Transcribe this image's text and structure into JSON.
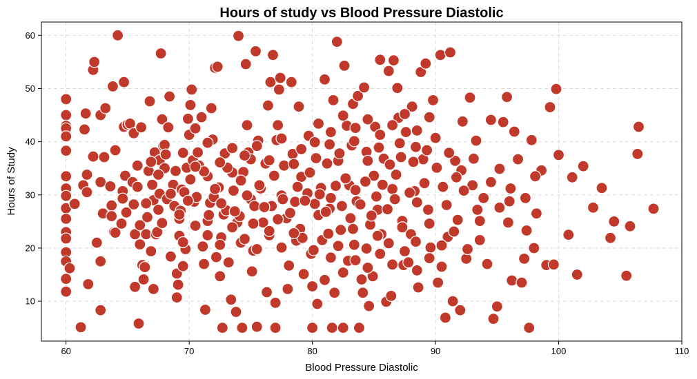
{
  "chart_data": {
    "type": "scatter",
    "title": "Hours of study vs Blood Pressure Diastolic",
    "xlabel": "Blood Pressure Diastolic",
    "ylabel": "Hours of Study",
    "xlim": [
      58,
      110
    ],
    "ylim": [
      2.5,
      62.5
    ],
    "xticks": [
      60,
      70,
      80,
      90,
      100,
      110
    ],
    "yticks": [
      10,
      20,
      30,
      40,
      50,
      60
    ],
    "grid": true,
    "marker_color": "#c0392b",
    "marker_edge_color": "#ffffff",
    "points": [
      [
        60,
        48
      ],
      [
        60,
        45
      ],
      [
        60,
        43
      ],
      [
        60,
        42.5
      ],
      [
        60,
        41
      ],
      [
        60,
        38.3
      ],
      [
        60,
        33.5
      ],
      [
        60,
        31.2
      ],
      [
        60,
        29.8
      ],
      [
        60,
        27.5
      ],
      [
        60,
        25.5
      ],
      [
        60,
        23
      ],
      [
        60,
        21.8
      ],
      [
        60,
        19.2
      ],
      [
        60,
        17.5
      ],
      [
        60,
        14.2
      ],
      [
        60,
        11.8
      ],
      [
        60.3,
        16.2
      ],
      [
        60.7,
        28.3
      ],
      [
        61.2,
        5.1
      ],
      [
        61.4,
        31.8
      ],
      [
        61.5,
        42.3
      ],
      [
        61.6,
        45.3
      ],
      [
        61.7,
        30.5
      ],
      [
        61.7,
        33.8
      ],
      [
        61.8,
        13.2
      ],
      [
        62.2,
        37.2
      ],
      [
        62.2,
        53.5
      ],
      [
        62.3,
        55
      ],
      [
        62.5,
        21
      ],
      [
        62.8,
        17.5
      ],
      [
        62.8,
        8.3
      ],
      [
        62.8,
        45
      ],
      [
        62.8,
        32.4
      ],
      [
        63,
        26.5
      ],
      [
        63.1,
        37.1
      ],
      [
        63.2,
        46.3
      ],
      [
        63.6,
        31.6
      ],
      [
        63.7,
        28
      ],
      [
        63.7,
        26
      ],
      [
        63.8,
        50.4
      ],
      [
        63.9,
        23
      ],
      [
        64,
        38.4
      ],
      [
        64,
        22.9
      ],
      [
        64.2,
        60
      ],
      [
        64.5,
        24.6
      ],
      [
        64.6,
        30.7
      ],
      [
        64.6,
        29.3
      ],
      [
        64.7,
        42.8
      ],
      [
        64.7,
        51.2
      ],
      [
        64.8,
        33.6
      ],
      [
        65,
        43.2
      ],
      [
        65.2,
        43.4
      ],
      [
        65.4,
        32.4
      ],
      [
        65.5,
        41.6
      ],
      [
        65.5,
        28.2
      ],
      [
        65.6,
        22.6
      ],
      [
        65.6,
        12.7
      ],
      [
        65.8,
        35.5
      ],
      [
        65.9,
        5.8
      ],
      [
        66,
        24.3
      ],
      [
        66,
        20.7
      ],
      [
        66.1,
        42.7
      ],
      [
        66.2,
        16.8
      ],
      [
        66.3,
        14.1
      ],
      [
        66.4,
        16.4
      ],
      [
        66.5,
        22.6
      ],
      [
        66.6,
        25.8
      ],
      [
        66.7,
        34.5
      ],
      [
        66.8,
        47.6
      ],
      [
        66.9,
        19.4
      ],
      [
        67,
        31.9
      ],
      [
        67.1,
        29
      ],
      [
        67.1,
        12.3
      ],
      [
        67.2,
        38
      ],
      [
        67.3,
        22.6
      ],
      [
        67.4,
        23
      ],
      [
        67.5,
        27.2
      ],
      [
        67.6,
        36.5
      ],
      [
        67.6,
        30.2
      ],
      [
        67.7,
        56.6
      ],
      [
        67.8,
        44.2
      ],
      [
        67.9,
        39.2
      ],
      [
        68,
        39.4
      ],
      [
        68,
        35
      ],
      [
        68.2,
        29.2
      ],
      [
        68.3,
        42.7
      ],
      [
        68.4,
        48.5
      ],
      [
        68.5,
        18.4
      ],
      [
        68.7,
        31.9
      ],
      [
        68.8,
        27.9
      ],
      [
        68.9,
        34.5
      ],
      [
        69,
        15.2
      ],
      [
        69,
        10.7
      ],
      [
        69.1,
        13.1
      ],
      [
        69.2,
        22.3
      ],
      [
        69.2,
        25.5
      ],
      [
        69.3,
        27
      ],
      [
        69.4,
        31
      ],
      [
        69.5,
        16.6
      ],
      [
        69.6,
        30.5
      ],
      [
        69.7,
        19.8
      ],
      [
        69.8,
        35.1
      ],
      [
        69.9,
        44.3
      ],
      [
        70,
        41.3
      ],
      [
        70.1,
        46.9
      ],
      [
        70.2,
        49.8
      ],
      [
        70.3,
        36.5
      ],
      [
        70.4,
        28.7
      ],
      [
        70.5,
        42.5
      ],
      [
        70.7,
        38
      ],
      [
        70.8,
        35.5
      ],
      [
        71,
        44.6
      ],
      [
        71.1,
        20.3
      ],
      [
        71.2,
        17
      ],
      [
        71.3,
        8.4
      ],
      [
        71.5,
        25.1
      ],
      [
        71.5,
        33.5
      ],
      [
        71.7,
        28.5
      ],
      [
        71.8,
        46.3
      ],
      [
        71.9,
        40.4
      ],
      [
        72,
        29.6
      ],
      [
        72.1,
        53.9
      ],
      [
        72.2,
        18.3
      ],
      [
        72.3,
        54.1
      ],
      [
        72.4,
        31.4
      ],
      [
        72.5,
        14.7
      ],
      [
        72.6,
        22
      ],
      [
        72.7,
        5
      ],
      [
        72.8,
        26.3
      ],
      [
        72.9,
        37.8
      ],
      [
        73,
        27.1
      ],
      [
        73.2,
        17.3
      ],
      [
        73.4,
        10.3
      ],
      [
        73.5,
        34.2
      ],
      [
        73.6,
        30.8
      ],
      [
        73.8,
        8
      ],
      [
        73.9,
        24.8
      ],
      [
        74,
        59.9
      ],
      [
        74.1,
        26
      ],
      [
        74.2,
        21
      ],
      [
        74.3,
        5
      ],
      [
        74.4,
        34.3
      ],
      [
        74.6,
        54.6
      ],
      [
        74.7,
        43.1
      ],
      [
        74.8,
        38
      ],
      [
        75,
        36.7
      ],
      [
        75,
        29.2
      ],
      [
        75.1,
        15.6
      ],
      [
        75.2,
        19.5
      ],
      [
        75.3,
        27.9
      ],
      [
        75.4,
        57
      ],
      [
        75.5,
        5.2
      ],
      [
        75.6,
        40.2
      ],
      [
        75.8,
        31.2
      ],
      [
        76,
        24.8
      ],
      [
        76.2,
        35.9
      ],
      [
        76.3,
        11.7
      ],
      [
        76.4,
        46.8
      ],
      [
        76.5,
        22.4
      ],
      [
        76.6,
        51.2
      ],
      [
        76.7,
        27.9
      ],
      [
        76.8,
        56.3
      ],
      [
        77,
        9.7
      ],
      [
        77,
        5
      ],
      [
        77.1,
        40.3
      ],
      [
        77.2,
        43.1
      ],
      [
        77.3,
        49.8
      ],
      [
        77.4,
        52
      ],
      [
        77.5,
        29.9
      ],
      [
        77.7,
        35.5
      ],
      [
        77.9,
        25.6
      ],
      [
        78,
        12.3
      ],
      [
        78.1,
        16.7
      ],
      [
        78.3,
        51.2
      ],
      [
        78.4,
        37.7
      ],
      [
        78.6,
        28.7
      ],
      [
        78.7,
        21.4
      ],
      [
        78.9,
        46.6
      ],
      [
        79,
        23.6
      ],
      [
        79.1,
        33.4
      ],
      [
        79.3,
        15.1
      ],
      [
        79.6,
        30.3
      ],
      [
        79.7,
        41.1
      ],
      [
        79.9,
        18.9
      ],
      [
        80,
        12.8
      ],
      [
        80,
        5
      ],
      [
        80.2,
        39.9
      ],
      [
        80.4,
        9.5
      ],
      [
        80.5,
        26.2
      ],
      [
        80.7,
        31.3
      ],
      [
        80.8,
        21.5
      ],
      [
        81,
        51.7
      ],
      [
        81,
        14
      ],
      [
        81.2,
        35.9
      ],
      [
        81.4,
        27.4
      ],
      [
        81.6,
        5
      ],
      [
        81.7,
        47.8
      ],
      [
        81.8,
        11.6
      ],
      [
        82,
        58.8
      ],
      [
        82.1,
        36.4
      ],
      [
        82.3,
        23.4
      ],
      [
        82.5,
        5
      ],
      [
        82.6,
        54.3
      ],
      [
        82.8,
        43
      ],
      [
        82.9,
        17.6
      ],
      [
        83,
        31.8
      ],
      [
        83.2,
        39.3
      ],
      [
        83.3,
        47.1
      ],
      [
        83.4,
        20.6
      ],
      [
        83.6,
        28.8
      ],
      [
        83.7,
        48.6
      ],
      [
        83.8,
        5
      ],
      [
        84,
        14.1
      ],
      [
        84.1,
        11.6
      ],
      [
        84.2,
        50.2
      ],
      [
        84.4,
        38.1
      ],
      [
        84.6,
        9.1
      ],
      [
        84.7,
        24.4
      ],
      [
        84.9,
        14.7
      ],
      [
        85,
        33.6
      ],
      [
        85.1,
        42.8
      ],
      [
        85.3,
        27.2
      ],
      [
        85.5,
        55.4
      ],
      [
        85.6,
        22.6
      ],
      [
        85.8,
        36.8
      ],
      [
        86,
        9.9
      ],
      [
        86.2,
        53.3
      ],
      [
        86.4,
        11
      ],
      [
        86.5,
        31.1
      ],
      [
        86.6,
        55.3
      ],
      [
        86.7,
        29.2
      ],
      [
        86.9,
        50.1
      ],
      [
        87,
        44.5
      ],
      [
        87.2,
        37.1
      ],
      [
        87.4,
        16.8
      ],
      [
        87.6,
        41.8
      ],
      [
        87.8,
        17.3
      ],
      [
        88,
        22.6
      ],
      [
        88.1,
        46.6
      ],
      [
        88.3,
        30.7
      ],
      [
        88.4,
        39
      ],
      [
        88.6,
        12.6
      ],
      [
        88.8,
        53.1
      ],
      [
        89,
        36.7
      ],
      [
        89.2,
        54.7
      ],
      [
        89.4,
        27.2
      ],
      [
        89.6,
        20.1
      ],
      [
        89.8,
        47.8
      ],
      [
        90,
        40.7
      ],
      [
        90.2,
        13.5
      ],
      [
        90.4,
        56.3
      ],
      [
        90.6,
        31.5
      ],
      [
        90.8,
        6.9
      ],
      [
        91,
        22.1
      ],
      [
        91.2,
        56.8
      ],
      [
        91.4,
        10
      ],
      [
        91.6,
        36.4
      ],
      [
        91.8,
        25.3
      ],
      [
        92,
        8.3
      ],
      [
        92.2,
        43.8
      ],
      [
        92.5,
        18
      ],
      [
        92.8,
        48.3
      ],
      [
        93,
        31.8
      ],
      [
        93.3,
        40.2
      ],
      [
        93.6,
        21.5
      ],
      [
        93.9,
        29.4
      ],
      [
        94.2,
        17
      ],
      [
        94.5,
        44.1
      ],
      [
        94.7,
        6.7
      ],
      [
        95,
        9
      ],
      [
        95.2,
        34.9
      ],
      [
        95.5,
        43.7
      ],
      [
        95.8,
        48.4
      ],
      [
        96,
        28.8
      ],
      [
        96.2,
        13.9
      ],
      [
        96.4,
        41.9
      ],
      [
        96.7,
        36.7
      ],
      [
        97,
        13.5
      ],
      [
        97.2,
        18
      ],
      [
        97.4,
        23.3
      ],
      [
        97.6,
        5
      ],
      [
        97.8,
        40.3
      ],
      [
        98,
        20
      ],
      [
        98.2,
        26.5
      ],
      [
        98.6,
        34.6
      ],
      [
        99,
        16.8
      ],
      [
        99.3,
        46.5
      ],
      [
        99.6,
        16.9
      ],
      [
        99.8,
        49.9
      ],
      [
        100,
        37.5
      ],
      [
        100.8,
        22.5
      ],
      [
        101.1,
        33.3
      ],
      [
        101.5,
        15
      ],
      [
        102,
        35.4
      ],
      [
        102.8,
        27.6
      ],
      [
        103.5,
        31.3
      ],
      [
        104.2,
        21.9
      ],
      [
        104.5,
        25
      ],
      [
        105.5,
        14.8
      ],
      [
        105.8,
        24.1
      ],
      [
        106.4,
        37.7
      ],
      [
        106.5,
        42.8
      ],
      [
        107.7,
        27.4
      ],
      [
        80.2,
        28.3
      ],
      [
        80.6,
        30.1
      ],
      [
        81.1,
        26.8
      ],
      [
        81.5,
        29.4
      ],
      [
        81.9,
        31.7
      ],
      [
        82.4,
        27.9
      ],
      [
        82.7,
        33.1
      ],
      [
        83.1,
        25.6
      ],
      [
        83.5,
        30.9
      ],
      [
        83.9,
        28.2
      ],
      [
        84.3,
        32.5
      ],
      [
        84.8,
        26.1
      ],
      [
        85.2,
        29.7
      ],
      [
        85.7,
        31.9
      ],
      [
        86.1,
        27.3
      ],
      [
        86.8,
        33.8
      ],
      [
        87.3,
        25.1
      ],
      [
        87.9,
        30.4
      ],
      [
        88.5,
        28.6
      ],
      [
        89.1,
        32.2
      ],
      [
        78.2,
        26.6
      ],
      [
        78.8,
        31.5
      ],
      [
        79.4,
        28.9
      ],
      [
        79.8,
        34.2
      ],
      [
        77.6,
        29.2
      ],
      [
        77.2,
        25.4
      ],
      [
        76.9,
        33.6
      ],
      [
        76.1,
        27.7
      ],
      [
        75.7,
        31.8
      ],
      [
        75.2,
        24.6
      ],
      [
        74.7,
        29.9
      ],
      [
        74.2,
        32.7
      ],
      [
        73.7,
        26.9
      ],
      [
        73.1,
        35.1
      ],
      [
        72.6,
        28.4
      ],
      [
        72.1,
        31.1
      ],
      [
        71.6,
        26.2
      ],
      [
        71.2,
        34.4
      ],
      [
        70.6,
        29.6
      ],
      [
        70.1,
        32.9
      ],
      [
        79.1,
        38.6
      ],
      [
        80.3,
        36.9
      ],
      [
        81.4,
        39.5
      ],
      [
        82.2,
        37.8
      ],
      [
        83.4,
        40.1
      ],
      [
        84.5,
        36.4
      ],
      [
        85.4,
        38.9
      ],
      [
        86.3,
        35.7
      ],
      [
        87.1,
        39.7
      ],
      [
        88.2,
        36.2
      ],
      [
        89.3,
        38.4
      ],
      [
        90.1,
        35.1
      ],
      [
        91.1,
        37.9
      ],
      [
        92.1,
        34.6
      ],
      [
        93.1,
        36.8
      ],
      [
        79.2,
        21.9
      ],
      [
        80.1,
        19.6
      ],
      [
        81.3,
        22.7
      ],
      [
        82.1,
        20.4
      ],
      [
        83.3,
        23.6
      ],
      [
        84.4,
        19.9
      ],
      [
        85.3,
        22.3
      ],
      [
        86.2,
        20.9
      ],
      [
        87.3,
        23.9
      ],
      [
        88.4,
        21.2
      ],
      [
        89.5,
        24.6
      ],
      [
        90.5,
        20.5
      ],
      [
        91.5,
        23.1
      ],
      [
        92.6,
        19.8
      ],
      [
        93.6,
        25.1
      ],
      [
        74.5,
        37.4
      ],
      [
        75.5,
        39.2
      ],
      [
        76.5,
        36.5
      ],
      [
        77.5,
        40.6
      ],
      [
        78.5,
        35.8
      ],
      [
        73.5,
        38.8
      ],
      [
        72.5,
        36.1
      ],
      [
        71.5,
        39.8
      ],
      [
        70.5,
        35.3
      ],
      [
        69.5,
        37.9
      ],
      [
        74.5,
        21.7
      ],
      [
        75.5,
        19.8
      ],
      [
        76.5,
        23.2
      ],
      [
        77.5,
        20.1
      ],
      [
        78.5,
        22.8
      ],
      [
        73.5,
        23.9
      ],
      [
        72.5,
        20.6
      ],
      [
        71.5,
        22.4
      ],
      [
        70.5,
        24.2
      ],
      [
        69.5,
        21.1
      ],
      [
        84.5,
        44.2
      ],
      [
        85.5,
        41.3
      ],
      [
        83.5,
        42.6
      ],
      [
        82.5,
        44.9
      ],
      [
        81.5,
        41.8
      ],
      [
        80.5,
        43.4
      ],
      [
        86.5,
        43.1
      ],
      [
        87.5,
        45.2
      ],
      [
        88.5,
        42.1
      ],
      [
        89.5,
        44.6
      ],
      [
        84.5,
        16.3
      ],
      [
        85.5,
        18.9
      ],
      [
        83.5,
        17.7
      ],
      [
        82.5,
        15.4
      ],
      [
        81.5,
        18.2
      ],
      [
        86.5,
        16.9
      ],
      [
        87.5,
        19.4
      ],
      [
        88.5,
        15.8
      ],
      [
        89.5,
        18.1
      ],
      [
        90.5,
        16.5
      ],
      [
        94.5,
        32.4
      ],
      [
        95.2,
        27.6
      ],
      [
        96.1,
        31.2
      ],
      [
        97.3,
        29.4
      ],
      [
        98.1,
        33.5
      ],
      [
        93.4,
        27.2
      ],
      [
        92.3,
        30.8
      ],
      [
        91.7,
        33.3
      ],
      [
        90.9,
        28.1
      ],
      [
        95.9,
        24.8
      ],
      [
        65.8,
        31.5
      ],
      [
        66.5,
        28.4
      ],
      [
        67.5,
        33.8
      ],
      [
        68.5,
        30.2
      ],
      [
        69.2,
        26.3
      ],
      [
        66.9,
        36.2
      ],
      [
        67.8,
        24.7
      ],
      [
        68.1,
        37.6
      ],
      [
        64.9,
        26.7
      ],
      [
        69.9,
        28.9
      ]
    ]
  }
}
